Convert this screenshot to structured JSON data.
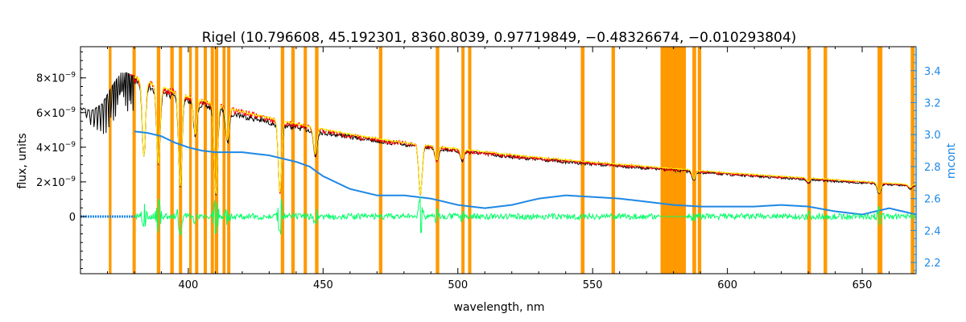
{
  "chart_data": {
    "type": "line",
    "title": "Rigel    (10.796608, 45.192301, 8360.8039, 0.97719849, −0.48326674, −0.010293804)",
    "xlabel": "wavelength, nm",
    "ylabel": "flux, units",
    "y2label": "mcont",
    "xlim": [
      360,
      670
    ],
    "ylim": [
      -3.3e-09,
      9.8e-09
    ],
    "y2lim": [
      2.13,
      3.55
    ],
    "x_ticks": [
      400,
      450,
      500,
      550,
      600,
      650
    ],
    "y_ticks": [
      {
        "value": 0,
        "label": "0",
        "exp": ""
      },
      {
        "value": 2e-09,
        "label": "2×10",
        "exp": "−9"
      },
      {
        "value": 4e-09,
        "label": "4×10",
        "exp": "−9"
      },
      {
        "value": 6e-09,
        "label": "6×10",
        "exp": "−9"
      },
      {
        "value": 8e-09,
        "label": "8×10",
        "exp": "−9"
      }
    ],
    "y2_ticks": [
      "2.2",
      "2.4",
      "2.6",
      "2.8",
      "3.0",
      "3.2",
      "3.4"
    ],
    "masked_bands": [
      [
        370.5,
        371.5
      ],
      [
        379.3,
        380.5
      ],
      [
        388.3,
        389.6
      ],
      [
        393.3,
        394.6
      ],
      [
        396.5,
        397.7
      ],
      [
        400.3,
        401.3
      ],
      [
        402.5,
        403.7
      ],
      [
        405.7,
        406.9
      ],
      [
        408.3,
        409.5
      ],
      [
        409.8,
        411.1
      ],
      [
        412.7,
        413.8
      ],
      [
        414.4,
        415.6
      ],
      [
        434.3,
        435.6
      ],
      [
        438.2,
        439.5
      ],
      [
        442.8,
        444.0
      ],
      [
        447.0,
        448.3
      ],
      [
        470.7,
        472.0
      ],
      [
        491.8,
        493.1
      ],
      [
        501.3,
        502.5
      ],
      [
        503.8,
        505.0
      ],
      [
        545.6,
        547.0
      ],
      [
        557.0,
        558.3
      ],
      [
        575.2,
        584.6
      ],
      [
        587.0,
        588.4
      ],
      [
        589.0,
        590.3
      ],
      [
        629.7,
        631.0
      ],
      [
        635.7,
        637.0
      ],
      [
        655.7,
        657.5
      ],
      [
        668.0,
        669.5
      ]
    ],
    "absorption_lines": [
      [
        383.5,
        0.55
      ],
      [
        388.9,
        0.6
      ],
      [
        397.0,
        0.75
      ],
      [
        402.6,
        0.3
      ],
      [
        410.2,
        0.8
      ],
      [
        414.5,
        0.3
      ],
      [
        434.0,
        0.75
      ],
      [
        447.1,
        0.3
      ],
      [
        486.1,
        0.7
      ],
      [
        492.2,
        0.2
      ],
      [
        501.6,
        0.15
      ],
      [
        587.6,
        0.2
      ],
      [
        630.0,
        0.1
      ],
      [
        656.3,
        0.3
      ],
      [
        667.8,
        0.1
      ]
    ],
    "series": [
      {
        "name": "",
        "color": "#000000",
        "axis": "left",
        "x": [
          360,
          364,
          368,
          372,
          375,
          377,
          380,
          385,
          390,
          400,
          410,
          420,
          430,
          440,
          450,
          460,
          470,
          480,
          490,
          500,
          520,
          540,
          560,
          580,
          600,
          620,
          640,
          660,
          670
        ],
        "y": [
          6.3e-09,
          6.1e-09,
          6.5e-09,
          7.6e-09,
          8.3e-09,
          8.3e-09,
          8.1e-09,
          7.8e-09,
          7.4e-09,
          6.9e-09,
          6.4e-09,
          6e-09,
          5.6e-09,
          5.3e-09,
          5e-09,
          4.75e-09,
          4.5e-09,
          4.3e-09,
          4.1e-09,
          3.9e-09,
          3.55e-09,
          3.25e-09,
          3e-09,
          2.75e-09,
          2.5e-09,
          2.3e-09,
          2.1e-09,
          1.9e-09,
          1.8e-09
        ]
      },
      {
        "name": "",
        "color": "#ff0000",
        "axis": "left",
        "x": [
          378,
          385,
          390,
          400,
          410,
          420,
          430,
          440,
          450,
          460,
          470,
          480,
          490,
          500,
          520,
          540,
          560,
          580,
          600,
          620,
          640,
          660,
          670
        ],
        "y": [
          8.2e-09,
          8e-09,
          7.6e-09,
          7.1e-09,
          6.6e-09,
          6.2e-09,
          5.8e-09,
          5.45e-09,
          5.1e-09,
          4.8e-09,
          4.55e-09,
          4.35e-09,
          4.15e-09,
          3.95e-09,
          3.6e-09,
          3.3e-09,
          3.05e-09,
          2.8e-09,
          2.55e-09,
          2.35e-09,
          2.15e-09,
          1.95e-09,
          1.85e-09
        ]
      },
      {
        "name": "",
        "color": "#ffff00",
        "axis": "left",
        "x": [
          380,
          400,
          420,
          440,
          460,
          480,
          500,
          520,
          540,
          560,
          580,
          600,
          620,
          640,
          660,
          670
        ],
        "y": [
          8.1e-09,
          7e-09,
          6.1e-09,
          5.4e-09,
          4.8e-09,
          4.3e-09,
          3.95e-09,
          3.6e-09,
          3.3e-09,
          3.05e-09,
          2.8e-09,
          2.55e-09,
          2.35e-09,
          2.15e-09,
          1.95e-09,
          1.85e-09
        ]
      },
      {
        "name": "",
        "color": "#1e88e5",
        "axis": "right",
        "x": [
          380,
          385,
          390,
          395,
          400,
          405,
          410,
          415,
          420,
          430,
          440,
          445,
          450,
          460,
          470,
          480,
          490,
          500,
          510,
          520,
          530,
          540,
          550,
          560,
          570,
          580,
          590,
          600,
          610,
          620,
          630,
          640,
          650,
          660,
          670
        ],
        "y": [
          3.02,
          3.01,
          2.99,
          2.95,
          2.92,
          2.9,
          2.89,
          2.89,
          2.89,
          2.87,
          2.83,
          2.8,
          2.74,
          2.66,
          2.62,
          2.62,
          2.6,
          2.56,
          2.54,
          2.56,
          2.6,
          2.62,
          2.61,
          2.6,
          2.58,
          2.56,
          2.55,
          2.55,
          2.55,
          2.56,
          2.55,
          2.52,
          2.5,
          2.54,
          2.5
        ]
      },
      {
        "name": "",
        "color": "#1e88e5",
        "axis": "left",
        "x": [
          360,
          380
        ],
        "y": [
          0,
          0
        ]
      },
      {
        "name": "",
        "color": "#00ff66",
        "axis": "left",
        "x": [
          380,
          670
        ],
        "y": [
          0,
          0
        ]
      }
    ]
  }
}
